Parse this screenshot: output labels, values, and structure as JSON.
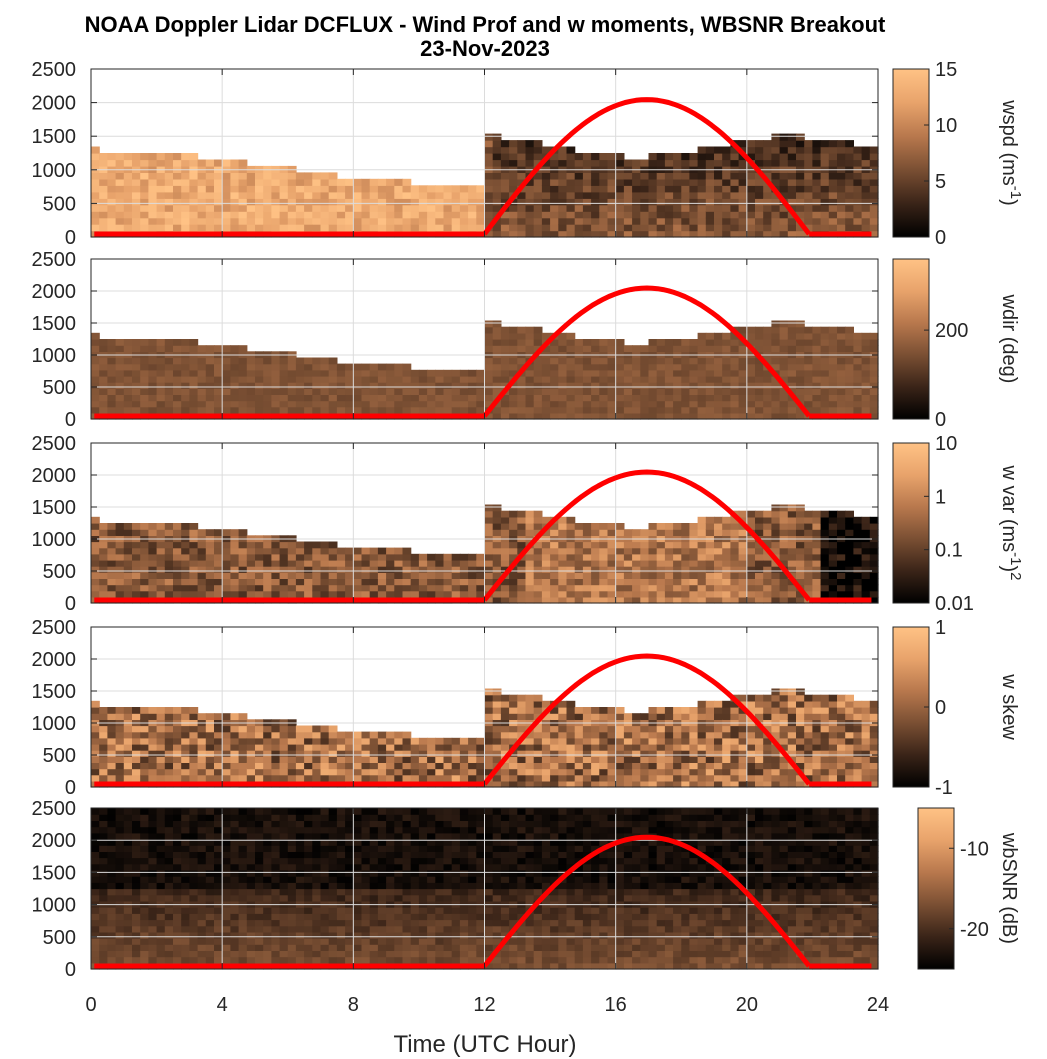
{
  "title": {
    "line1": "NOAA Doppler Lidar DCFLUX - Wind Prof and w moments, WBSNR Breakout",
    "line2": "23-Nov-2023"
  },
  "xaxis": {
    "label": "Time (UTC Hour)",
    "ticks": [
      "0",
      "4",
      "8",
      "12",
      "16",
      "20",
      "24"
    ]
  },
  "colors": {
    "colormap": [
      "#000000",
      "#3a2418",
      "#7a4f33",
      "#b8784d",
      "#e8a36b",
      "#ffc285"
    ],
    "sun_curve": "#ff0000"
  },
  "chart_data": [
    {
      "type": "heatmap",
      "variable": "wspd",
      "colorbar": {
        "label": "wspd (ms",
        "sup": "-1",
        "suffix": ")",
        "ticks": [
          "15",
          "10",
          "5",
          "0"
        ],
        "range": [
          0,
          15
        ]
      },
      "yticks": [
        "2500",
        "2000",
        "1500",
        "1000",
        "500",
        "0"
      ],
      "ylim": [
        0,
        2500
      ],
      "xlim": [
        0,
        24
      ],
      "grid": true,
      "overlay": {
        "name": "sun",
        "start_hour": 12,
        "peak_hour": 17,
        "end_hour": 21.9,
        "peak_height": 2000
      }
    },
    {
      "type": "heatmap",
      "variable": "wdir",
      "colorbar": {
        "label": "wdir (deg)",
        "sup": "",
        "suffix": "",
        "ticks": [
          "200",
          "0"
        ],
        "range": [
          0,
          360
        ]
      },
      "yticks": [
        "2500",
        "2000",
        "1500",
        "1000",
        "500",
        "0"
      ],
      "ylim": [
        0,
        2500
      ],
      "xlim": [
        0,
        24
      ],
      "grid": true,
      "overlay": {
        "name": "sun",
        "start_hour": 12,
        "peak_hour": 17,
        "end_hour": 21.9,
        "peak_height": 2000
      }
    },
    {
      "type": "heatmap",
      "variable": "w var",
      "colorbar": {
        "label": "w var (ms",
        "sup": "-1",
        "suffix": ")",
        "sup2": "2",
        "ticks": [
          "10",
          "1",
          "0.1",
          "0.01"
        ],
        "range": [
          0.01,
          10
        ],
        "scale": "log"
      },
      "yticks": [
        "2500",
        "2000",
        "1500",
        "1000",
        "500",
        "0"
      ],
      "ylim": [
        0,
        2500
      ],
      "xlim": [
        0,
        24
      ],
      "grid": true,
      "overlay": {
        "name": "sun",
        "start_hour": 12,
        "peak_hour": 17,
        "end_hour": 21.9,
        "peak_height": 2000
      }
    },
    {
      "type": "heatmap",
      "variable": "w skew",
      "colorbar": {
        "label": "w skew",
        "sup": "",
        "suffix": "",
        "ticks": [
          "1",
          "0",
          "-1"
        ],
        "range": [
          -1,
          1
        ]
      },
      "yticks": [
        "2500",
        "2000",
        "1500",
        "1000",
        "500",
        "0"
      ],
      "ylim": [
        0,
        2500
      ],
      "xlim": [
        0,
        24
      ],
      "grid": true,
      "overlay": {
        "name": "sun",
        "start_hour": 12,
        "peak_hour": 17,
        "end_hour": 21.9,
        "peak_height": 2000
      }
    },
    {
      "type": "heatmap",
      "variable": "wbSNR",
      "colorbar": {
        "label": "wbSNR (dB)",
        "sup": "",
        "suffix": "",
        "ticks": [
          "-10",
          "-20"
        ],
        "range": [
          -25,
          -5
        ]
      },
      "yticks": [
        "2500",
        "2000",
        "1500",
        "1000",
        "500",
        "0"
      ],
      "ylim": [
        0,
        2500
      ],
      "xlim": [
        0,
        24
      ],
      "grid": true,
      "overlay": {
        "name": "sun",
        "start_hour": 12,
        "peak_hour": 17,
        "end_hour": 21.9,
        "peak_height": 2000
      }
    }
  ]
}
